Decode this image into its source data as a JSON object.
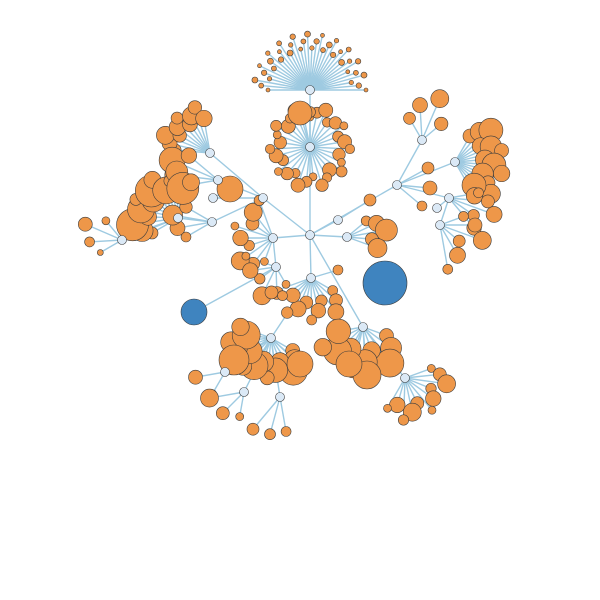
{
  "graph": {
    "type": "force-directed-tree",
    "colors": {
      "link": "#9ecae1",
      "internal_node": "#dbe9f6",
      "leaf_node": "#ee9749",
      "highlighted_node": "#3f84bf",
      "node_outline": "#3d3d3d",
      "background": "#ffffff"
    }
  }
}
